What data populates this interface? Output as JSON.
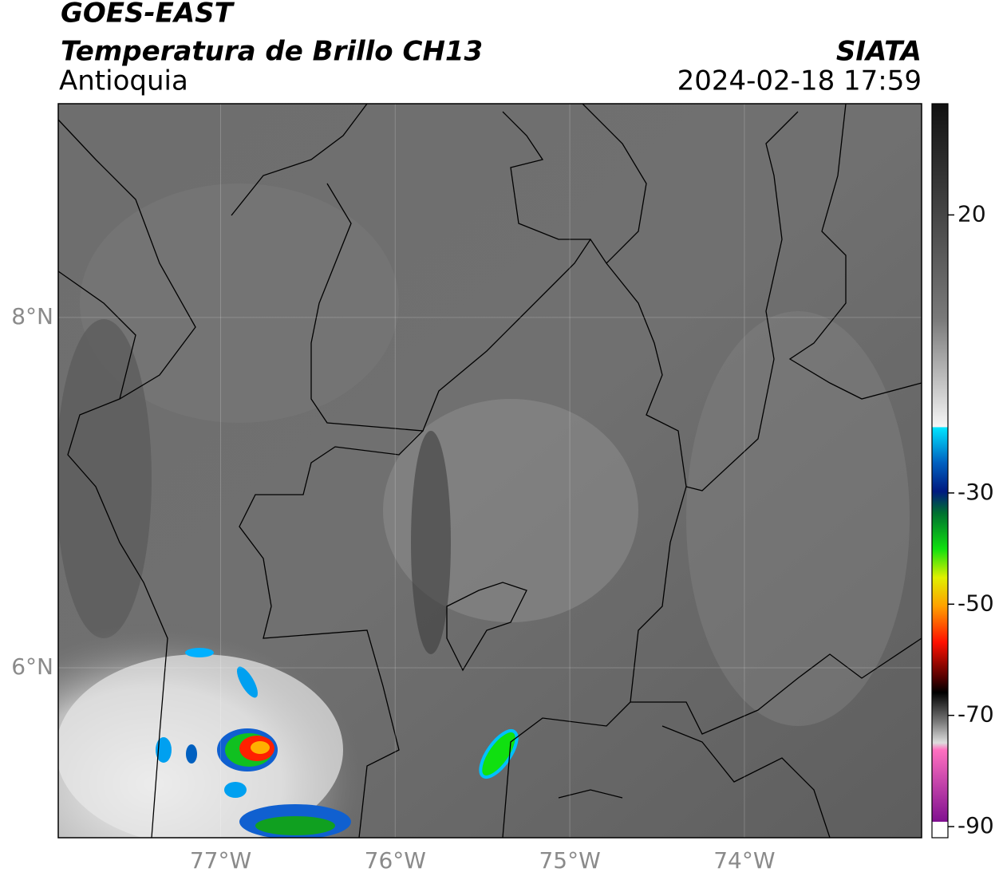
{
  "header": {
    "title": "GOES-EAST",
    "subtitle": "Temperatura de Brillo CH13",
    "region": "Antioquia",
    "source": "SIATA",
    "datetime": "2024-02-18 17:59"
  },
  "map_data": {
    "xlim": [
      -77.93,
      -72.985
    ],
    "ylim": [
      5.03,
      9.22
    ],
    "xticks": [
      {
        "value": -77,
        "label": "77°W"
      },
      {
        "value": -76,
        "label": "76°W"
      },
      {
        "value": -75,
        "label": "75°W"
      },
      {
        "value": -74,
        "label": "74°W"
      }
    ],
    "yticks": [
      {
        "value": 8,
        "label": "8°N"
      },
      {
        "value": 6,
        "label": "6°N"
      }
    ],
    "grid": true
  },
  "colorbar": {
    "lim": [
      -92,
      40
    ],
    "ticks": [
      20,
      -30,
      -50,
      -70,
      -90
    ]
  }
}
